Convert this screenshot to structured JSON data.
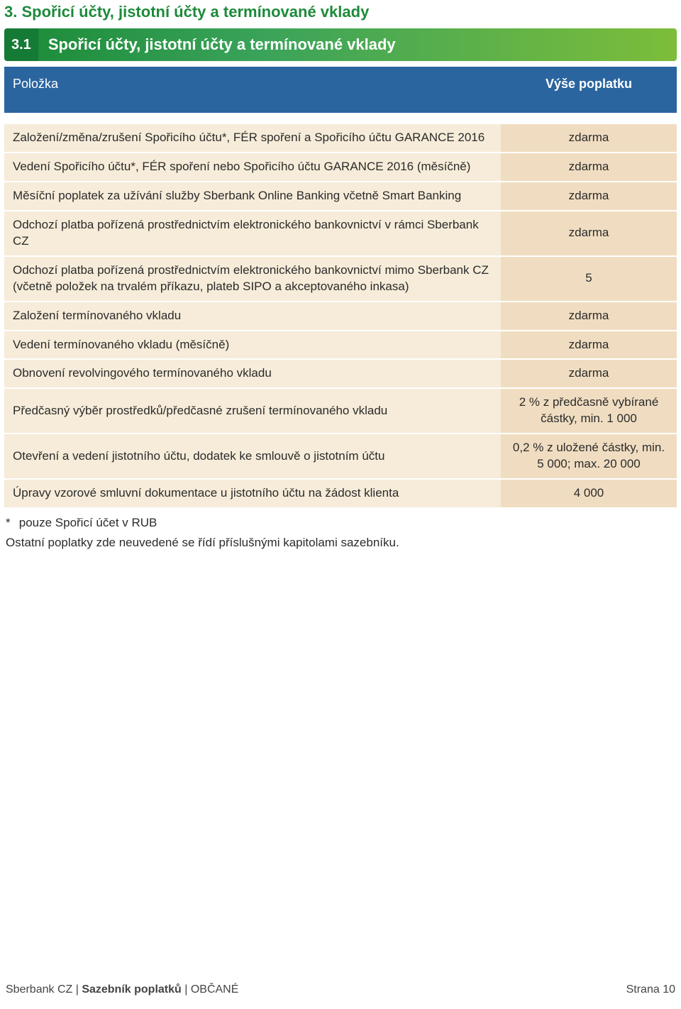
{
  "colors": {
    "green": "#1d8a3a",
    "green_dark": "#157a35",
    "gradient_start": "#1f8d3c",
    "gradient_mid": "#3aa35a",
    "gradient_end": "#7dbd3a",
    "cream": "#f6ecd9",
    "peach": "#f0ddc1",
    "blue": "#2b65a0",
    "text": "#2b2b2b",
    "page_bg": "#ffffff"
  },
  "top_title": "3. Spořicí účty, jistotní účty a termínované vklady",
  "section": {
    "tag": "3.1",
    "label": "Spořicí účty, jistotní účty a termínované vklady"
  },
  "table": {
    "header": {
      "item": "Položka",
      "fee": "Výše poplatku"
    },
    "rows": [
      {
        "item": "Založení/změna/zrušení Spořicího účtu*, FÉR spoření a Spořicího účtu GARANCE 2016",
        "fee": "zdarma"
      },
      {
        "item": "Vedení Spořicího účtu*, FÉR spoření nebo Spořicího účtu GARANCE 2016 (měsíčně)",
        "fee": "zdarma"
      },
      {
        "item": "Měsíční poplatek za užívání služby Sberbank Online Banking včetně Smart Banking",
        "fee": "zdarma"
      },
      {
        "item": "Odchozí platba pořízená prostřednictvím elektronického bankovnictví v rámci Sberbank CZ",
        "fee": "zdarma"
      },
      {
        "item": "Odchozí platba pořízená prostřednictvím elektronického bankovnictví mimo Sberbank CZ (včetně položek na trvalém příkazu, plateb SIPO a akceptovaného inkasa)",
        "fee": "5"
      },
      {
        "item": "Založení termínovaného vkladu",
        "fee": "zdarma"
      },
      {
        "item": "Vedení termínovaného vkladu (měsíčně)",
        "fee": "zdarma"
      },
      {
        "item": "Obnovení revolvingového termínovaného vkladu",
        "fee": "zdarma"
      },
      {
        "item": "Předčasný výběr prostředků/předčasné zrušení termínovaného vkladu",
        "fee": "2 % z předčasně vybírané částky, min. 1 000"
      },
      {
        "item": "Otevření a vedení jistotního účtu, dodatek ke smlouvě o jistotním účtu",
        "fee": "0,2 % z uložené částky, min. 5 000; max. 20 000"
      },
      {
        "item": "Úpravy vzorové smluvní dokumentace u jistotního účtu na žádost klienta",
        "fee": "4 000"
      }
    ]
  },
  "footnote": "pouze Spořicí účet v RUB",
  "footnote_mark": "*",
  "note": "Ostatní poplatky zde neuvedené se řídí příslušnými kapitolami sazebníku.",
  "footer": {
    "brand_left": "Sberbank CZ",
    "sep": " | ",
    "brand_bold": "Sazebník poplatků",
    "brand_right": "OBČANÉ",
    "page": "Strana 10"
  }
}
